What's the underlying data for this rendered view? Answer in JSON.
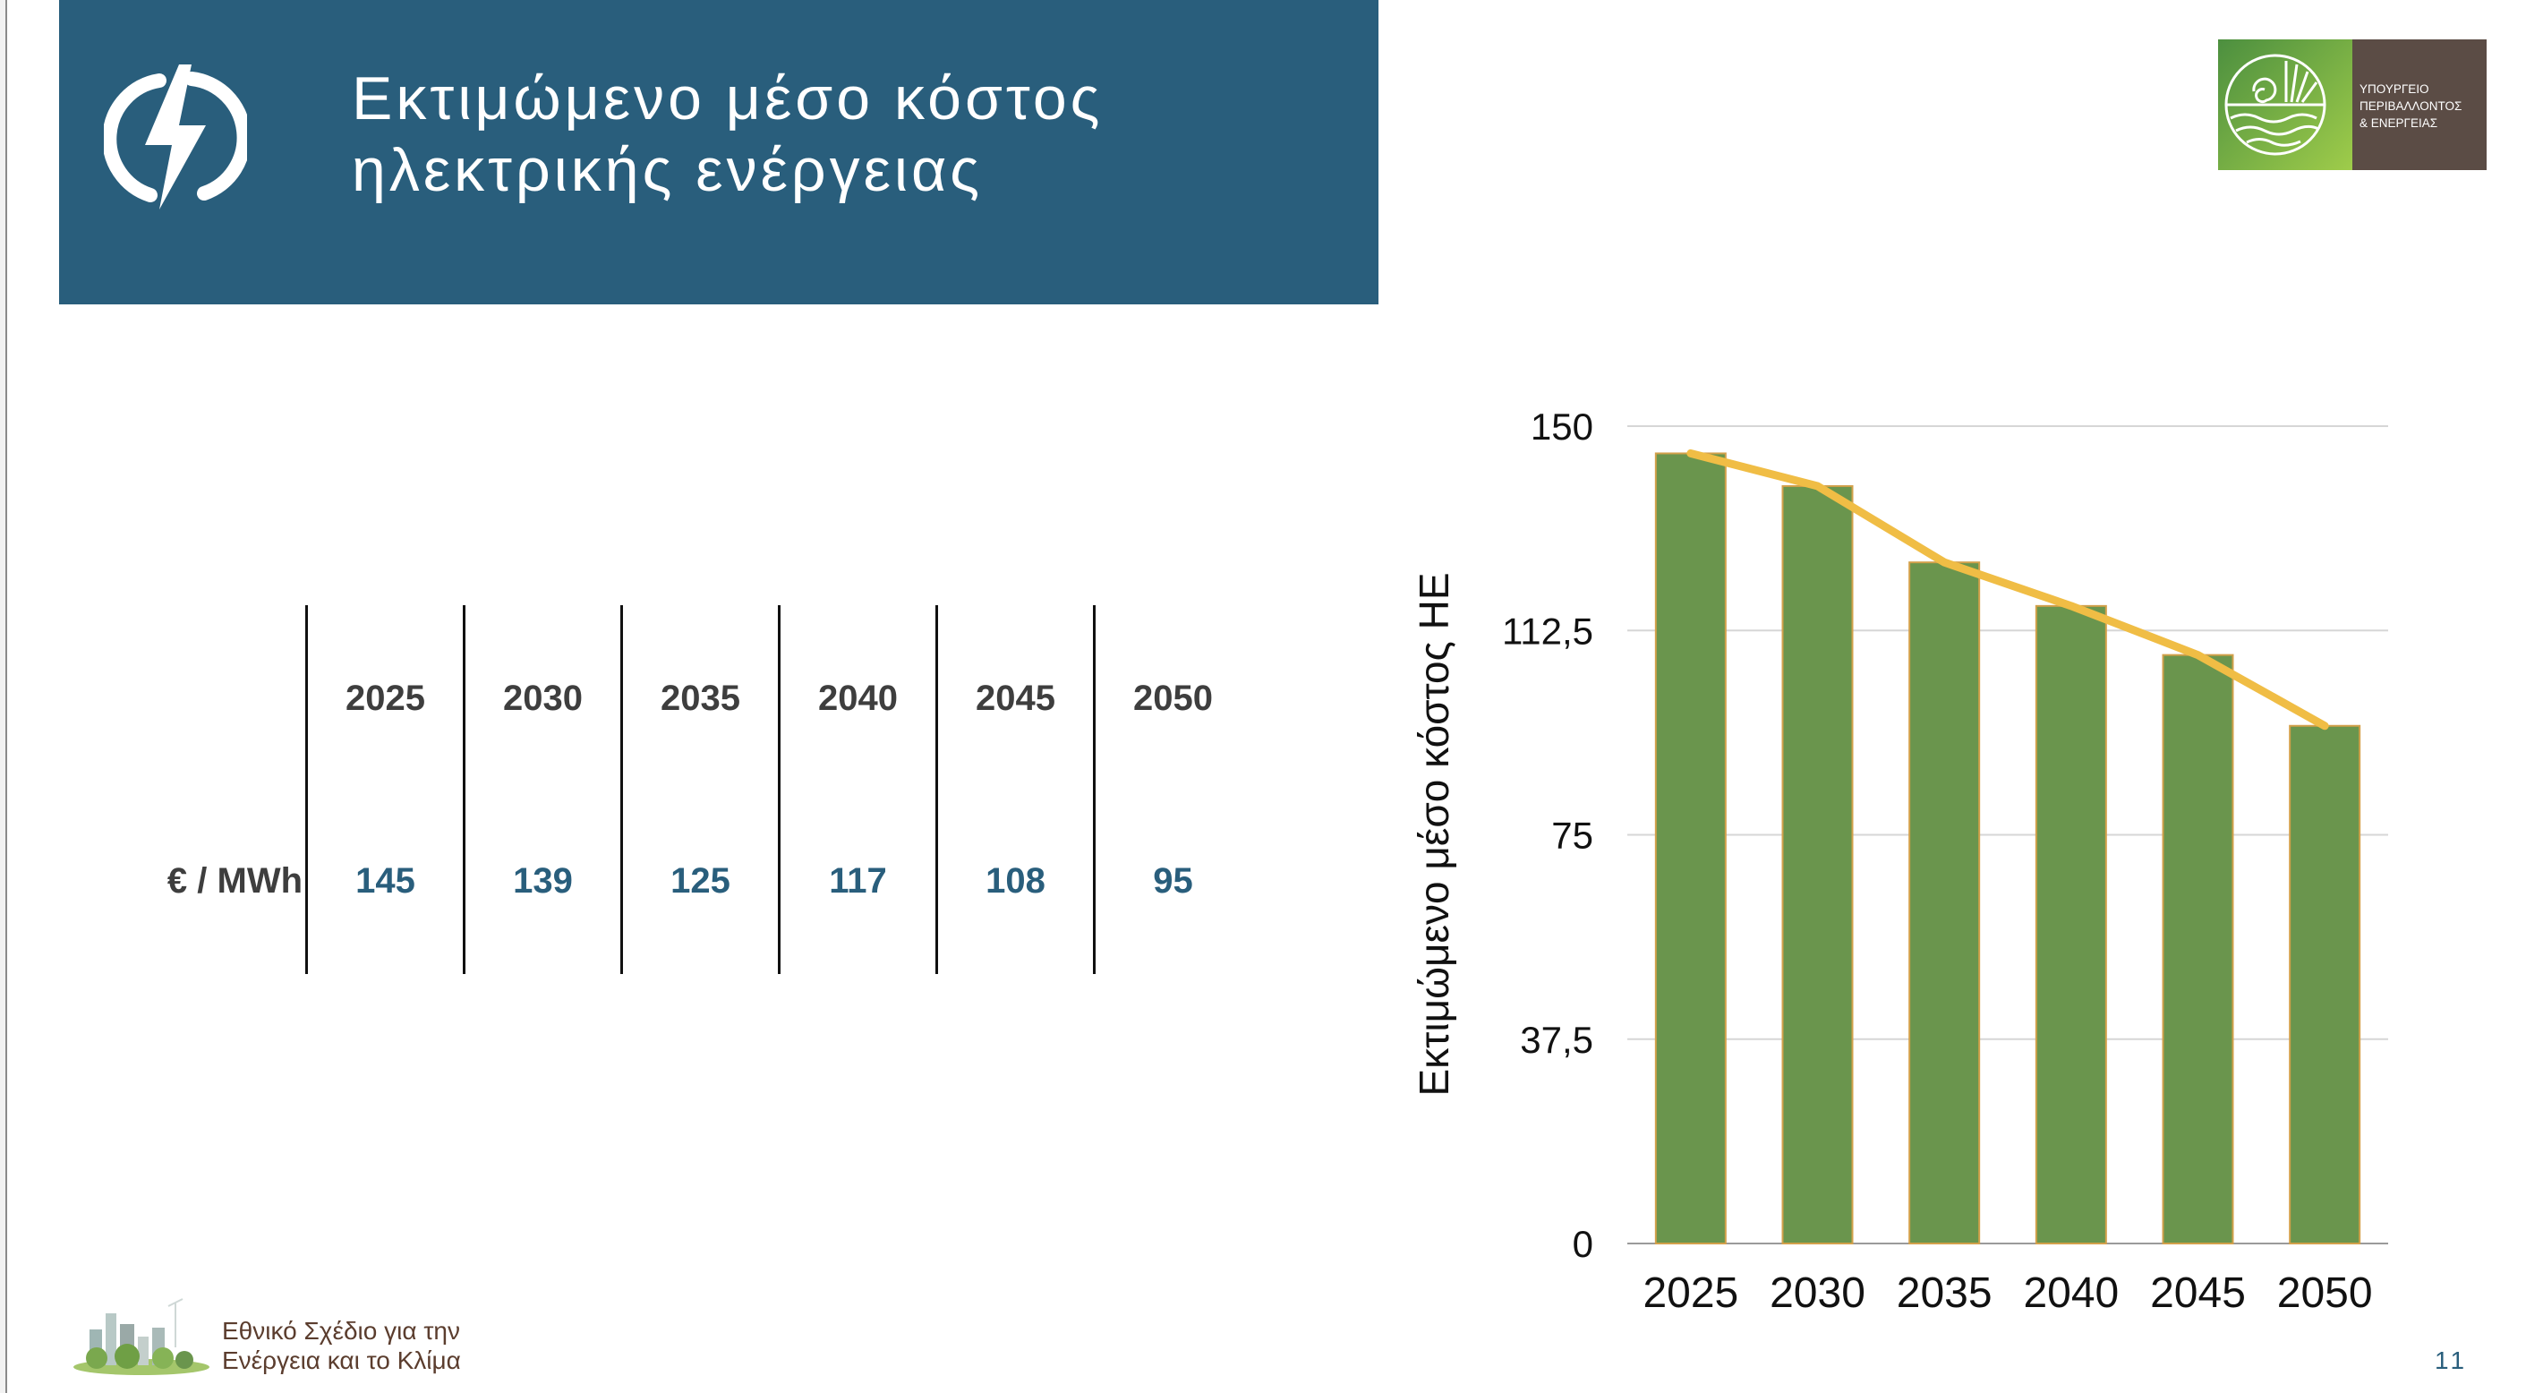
{
  "slide": {
    "title_line1": "Εκτιμώμενο μέσο κόστος",
    "title_line2": "ηλεκτρικής ενέργειας",
    "title_icon": "lightning-bolt-icon",
    "ministry_logo": {
      "line1": "ΥΠΟΥΡΓΕΙΟ",
      "line2": "ΠΕΡΙΒΑΛΛΟΝΤΟΣ",
      "line3": "& ΕΝΕΡΓΕΙΑΣ"
    },
    "footer": {
      "line1": "Εθνικό Σχέδιο για την",
      "line2": "Ενέργεια και το Κλίμα"
    },
    "page_number": "11"
  },
  "table": {
    "row_label": "€ / MWh",
    "columns": [
      "2025",
      "2030",
      "2035",
      "2040",
      "2045",
      "2050"
    ],
    "values": [
      "145",
      "139",
      "125",
      "117",
      "108",
      "95"
    ]
  },
  "colors": {
    "title_band": "#295e7c",
    "bar_fill": "#6a954d",
    "bar_edge": "#d2a04a",
    "line": "#f0bd45",
    "table_values": "#295e7c"
  },
  "chart_data": {
    "type": "bar",
    "categories": [
      "2025",
      "2030",
      "2035",
      "2040",
      "2045",
      "2050"
    ],
    "series": [
      {
        "type": "bar",
        "values": [
          145,
          139,
          125,
          117,
          108,
          95
        ]
      },
      {
        "type": "line",
        "values": [
          145,
          139,
          125,
          117,
          108,
          95
        ]
      }
    ],
    "ylabel": "Εκτιμώμενο μέσο κόστος ΗΕ",
    "xlabel": "",
    "ylim": [
      0,
      150
    ],
    "yticks": [
      "0",
      "37,5",
      "75",
      "112,5",
      "150"
    ],
    "ytick_values": [
      0,
      37.5,
      75,
      112.5,
      150
    ],
    "grid": true,
    "legend": "none"
  }
}
